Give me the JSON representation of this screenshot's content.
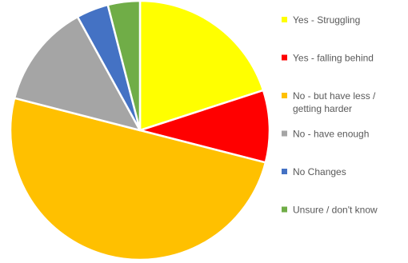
{
  "chart_data": {
    "type": "pie",
    "title": "",
    "start_angle_deg": 0,
    "direction": "clockwise",
    "slices": [
      {
        "label": "Yes - Struggling",
        "value": 20,
        "color": "#FFFF00"
      },
      {
        "label": "Yes - falling behind",
        "value": 9,
        "color": "#FF0000"
      },
      {
        "label": "No - but have less / getting harder",
        "value": 50,
        "color": "#FFC000"
      },
      {
        "label": "No - have enough",
        "value": 13,
        "color": "#A5A5A5"
      },
      {
        "label": "No Changes",
        "value": 4,
        "color": "#4472C4"
      },
      {
        "label": "Unsure / don't know",
        "value": 4,
        "color": "#70AD47"
      }
    ],
    "legend": {
      "position": "right",
      "entries": [
        {
          "lines": [
            "Yes - Struggling"
          ]
        },
        {
          "lines": [
            "Yes - falling behind"
          ]
        },
        {
          "lines": [
            "No - but have less /",
            "getting harder"
          ]
        },
        {
          "lines": [
            "No - have enough"
          ]
        },
        {
          "lines": [
            "No Changes"
          ]
        },
        {
          "lines": [
            "Unsure / don't know"
          ]
        }
      ]
    }
  }
}
